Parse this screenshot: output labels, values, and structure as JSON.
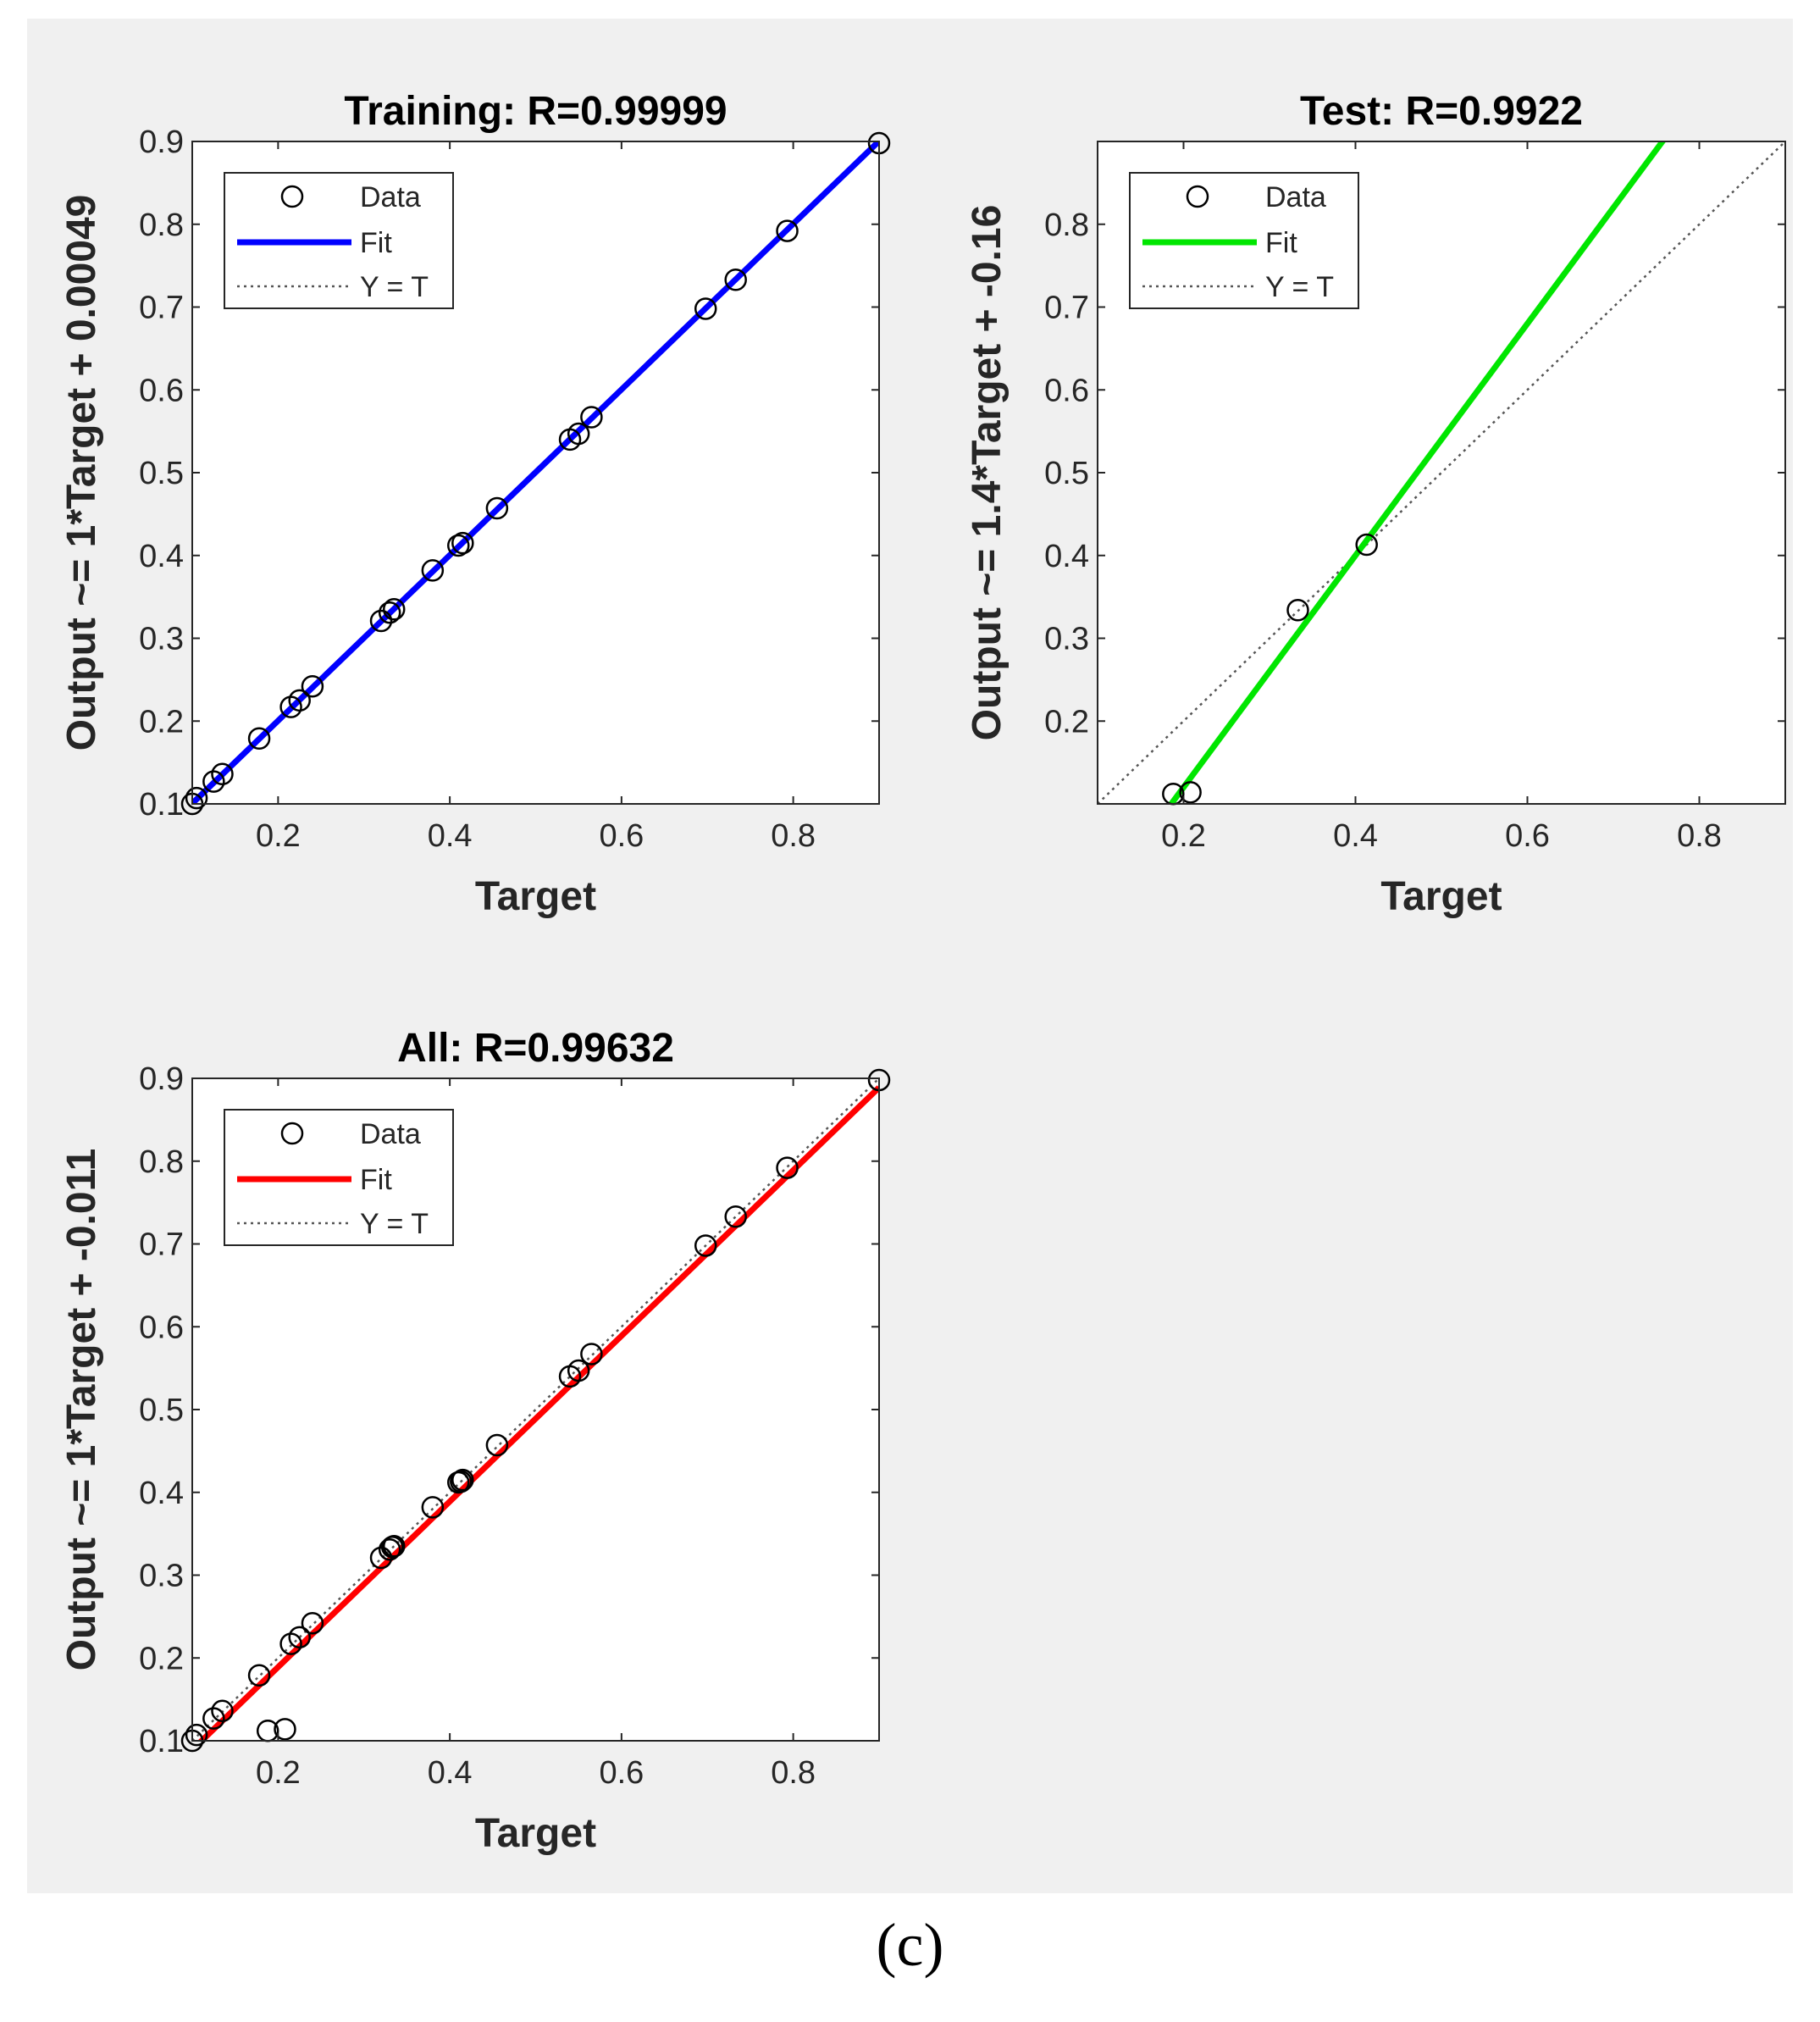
{
  "caption": "(c)",
  "chart_data": [
    {
      "type": "scatter",
      "title": "Training: R=0.99999",
      "xlabel": "Target",
      "ylabel": "Output ~= 1*Target + 0.00049",
      "xlim": [
        0.1,
        0.9
      ],
      "ylim": [
        0.1,
        0.9
      ],
      "xticks": [
        0.2,
        0.4,
        0.6,
        0.8
      ],
      "yticks": [
        0.1,
        0.2,
        0.3,
        0.4,
        0.5,
        0.6,
        0.7,
        0.8,
        0.9
      ],
      "fit_color": "#0000ff",
      "fit": {
        "slope": 1,
        "intercept": 0.00049
      },
      "legend": [
        "Data",
        "Fit",
        "Y = T"
      ],
      "legend_position": "top-left",
      "series": [
        {
          "name": "Data",
          "points": [
            [
              0.1,
              0.1
            ],
            [
              0.105,
              0.107
            ],
            [
              0.125,
              0.127
            ],
            [
              0.135,
              0.136
            ],
            [
              0.178,
              0.179
            ],
            [
              0.215,
              0.217
            ],
            [
              0.225,
              0.225
            ],
            [
              0.24,
              0.242
            ],
            [
              0.32,
              0.321
            ],
            [
              0.33,
              0.331
            ],
            [
              0.335,
              0.335
            ],
            [
              0.38,
              0.382
            ],
            [
              0.41,
              0.412
            ],
            [
              0.415,
              0.415
            ],
            [
              0.455,
              0.457
            ],
            [
              0.54,
              0.54
            ],
            [
              0.55,
              0.547
            ],
            [
              0.565,
              0.567
            ],
            [
              0.698,
              0.698
            ],
            [
              0.733,
              0.733
            ],
            [
              0.793,
              0.792
            ],
            [
              0.9,
              0.898
            ]
          ]
        }
      ]
    },
    {
      "type": "scatter",
      "title": "Test: R=0.9922",
      "xlabel": "Target",
      "ylabel": "Output ~= 1.4*Target + -0.16",
      "xlim": [
        0.1,
        0.9
      ],
      "ylim": [
        0.1,
        0.9
      ],
      "xticks": [
        0.2,
        0.4,
        0.6,
        0.8
      ],
      "yticks": [
        0.2,
        0.3,
        0.4,
        0.5,
        0.6,
        0.7,
        0.8
      ],
      "fit_color": "#00e600",
      "fit": {
        "slope": 1.4,
        "intercept": -0.16
      },
      "legend": [
        "Data",
        "Fit",
        "Y = T"
      ],
      "legend_position": "top-left",
      "series": [
        {
          "name": "Data",
          "points": [
            [
              0.188,
              0.112
            ],
            [
              0.208,
              0.114
            ],
            [
              0.333,
              0.334
            ],
            [
              0.413,
              0.413
            ]
          ]
        }
      ]
    },
    {
      "type": "scatter",
      "title": "All: R=0.99632",
      "xlabel": "Target",
      "ylabel": "Output ~= 1*Target + -0.011",
      "xlim": [
        0.1,
        0.9
      ],
      "ylim": [
        0.1,
        0.9
      ],
      "xticks": [
        0.2,
        0.4,
        0.6,
        0.8
      ],
      "yticks": [
        0.1,
        0.2,
        0.3,
        0.4,
        0.5,
        0.6,
        0.7,
        0.8,
        0.9
      ],
      "fit_color": "#ff0000",
      "fit": {
        "slope": 1,
        "intercept": -0.011
      },
      "legend": [
        "Data",
        "Fit",
        "Y = T"
      ],
      "legend_position": "top-left",
      "series": [
        {
          "name": "Data",
          "points": [
            [
              0.1,
              0.1
            ],
            [
              0.105,
              0.107
            ],
            [
              0.125,
              0.127
            ],
            [
              0.135,
              0.136
            ],
            [
              0.178,
              0.179
            ],
            [
              0.188,
              0.112
            ],
            [
              0.208,
              0.114
            ],
            [
              0.215,
              0.217
            ],
            [
              0.225,
              0.225
            ],
            [
              0.24,
              0.242
            ],
            [
              0.32,
              0.321
            ],
            [
              0.33,
              0.331
            ],
            [
              0.333,
              0.334
            ],
            [
              0.335,
              0.335
            ],
            [
              0.38,
              0.382
            ],
            [
              0.41,
              0.412
            ],
            [
              0.413,
              0.413
            ],
            [
              0.415,
              0.415
            ],
            [
              0.455,
              0.457
            ],
            [
              0.54,
              0.54
            ],
            [
              0.55,
              0.547
            ],
            [
              0.565,
              0.567
            ],
            [
              0.698,
              0.698
            ],
            [
              0.733,
              0.733
            ],
            [
              0.793,
              0.792
            ],
            [
              0.9,
              0.898
            ]
          ]
        }
      ]
    }
  ]
}
